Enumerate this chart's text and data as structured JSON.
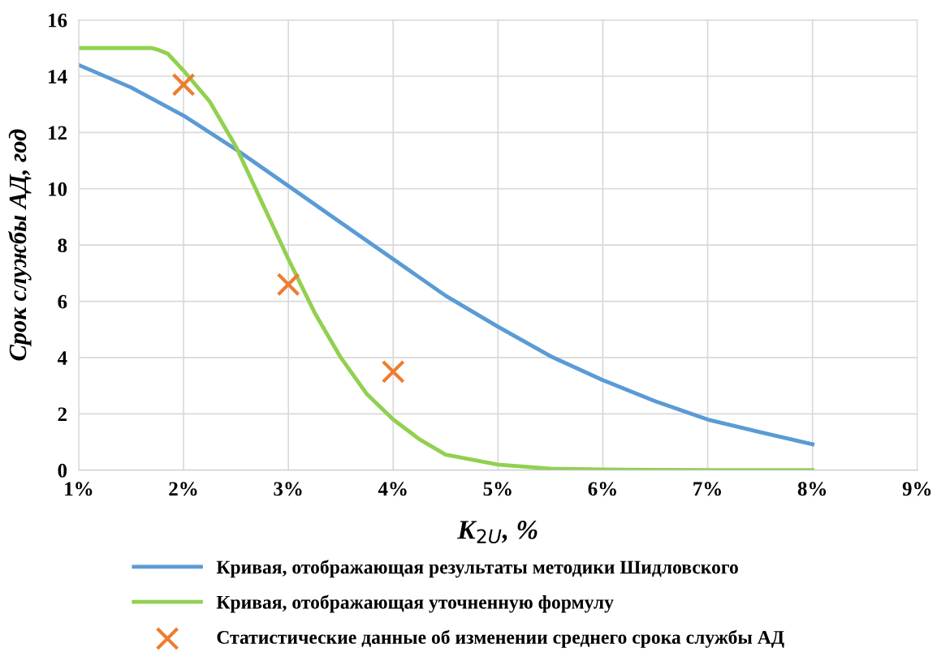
{
  "chart_data": {
    "type": "line",
    "xlabel": "K$_{2U}$, %",
    "ylabel": "Срок службы АД, год",
    "xlim": [
      1,
      9
    ],
    "ylim": [
      0,
      16
    ],
    "xticks": [
      {
        "value": 1,
        "label": "1%"
      },
      {
        "value": 2,
        "label": "2%"
      },
      {
        "value": 3,
        "label": "3%"
      },
      {
        "value": 4,
        "label": "4%"
      },
      {
        "value": 5,
        "label": "5%"
      },
      {
        "value": 6,
        "label": "6%"
      },
      {
        "value": 7,
        "label": "7%"
      },
      {
        "value": 8,
        "label": "8%"
      },
      {
        "value": 9,
        "label": "9%"
      }
    ],
    "yticks": [
      0,
      2,
      4,
      6,
      8,
      10,
      12,
      14,
      16
    ],
    "grid": true,
    "legend": "bottom",
    "series": [
      {
        "name": "Кривая, отображающая результаты методики Шидловского",
        "color": "#5b9bd5",
        "x": [
          1,
          1.5,
          2,
          2.5,
          3,
          3.5,
          4,
          4.5,
          5,
          5.5,
          6,
          6.5,
          7,
          7.5,
          8
        ],
        "values": [
          14.4,
          13.6,
          12.6,
          11.4,
          10.1,
          8.8,
          7.5,
          6.2,
          5.1,
          4.05,
          3.2,
          2.45,
          1.8,
          1.35,
          0.92
        ]
      },
      {
        "name": "Кривая, отображающая уточненную формулу",
        "color": "#92d050",
        "x": [
          1,
          1.7,
          1.75,
          1.85,
          2,
          2.25,
          2.5,
          2.75,
          3,
          3.25,
          3.5,
          3.75,
          4,
          4.25,
          4.5,
          5,
          5.5,
          6,
          7,
          8
        ],
        "values": [
          15,
          15,
          14.95,
          14.8,
          14.2,
          13.1,
          11.5,
          9.5,
          7.5,
          5.6,
          4.0,
          2.7,
          1.8,
          1.1,
          0.55,
          0.2,
          0.05,
          0.02,
          0,
          0
        ]
      },
      {
        "name": "Статистические данные об изменении среднего срока службы АД",
        "type": "scatter",
        "marker": "cross",
        "color": "#ed7d31",
        "x": [
          2,
          3,
          4
        ],
        "values": [
          13.7,
          6.6,
          3.5
        ]
      }
    ]
  }
}
